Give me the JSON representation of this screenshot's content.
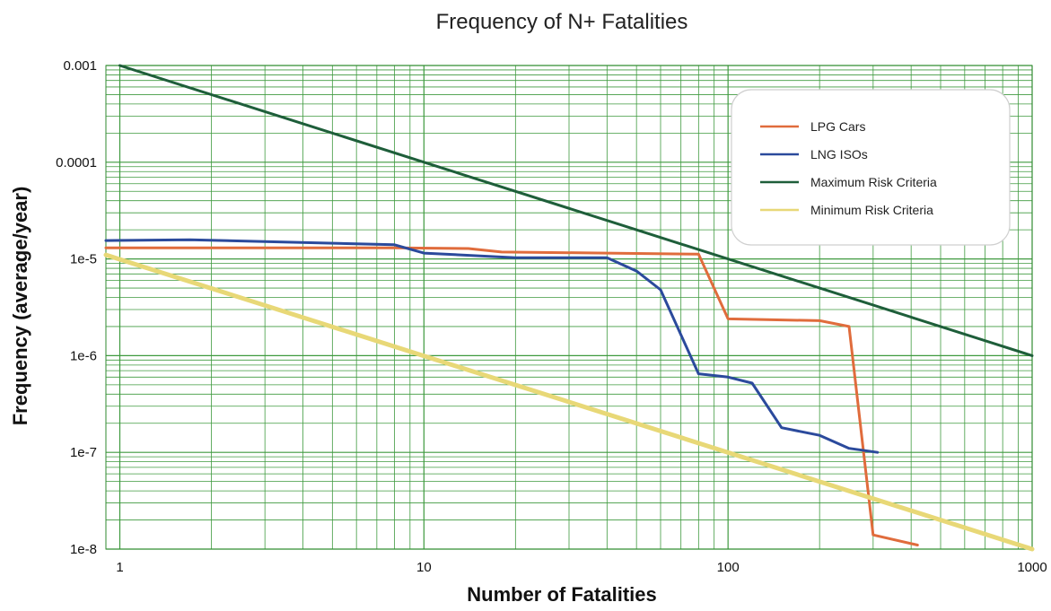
{
  "chart_data": {
    "type": "line",
    "title": "Frequency of N+ Fatalities",
    "xlabel": "Number of Fatalities",
    "ylabel": "Frequency (average/year)",
    "xscale": "log",
    "yscale": "log",
    "xlim": [
      0.9,
      1000
    ],
    "ylim": [
      1e-08,
      0.001
    ],
    "x_ticks": [
      {
        "value": 1,
        "label": "1"
      },
      {
        "value": 10,
        "label": "10"
      },
      {
        "value": 100,
        "label": "100"
      },
      {
        "value": 1000,
        "label": "1000"
      }
    ],
    "y_ticks": [
      {
        "value": 0.001,
        "label": "0.001"
      },
      {
        "value": 0.0001,
        "label": "0.0001"
      },
      {
        "value": 1e-05,
        "label": "1e-5"
      },
      {
        "value": 1e-06,
        "label": "1e-6"
      },
      {
        "value": 1e-07,
        "label": "1e-7"
      },
      {
        "value": 1e-08,
        "label": "1e-8"
      }
    ],
    "grid": true,
    "legend_position": "top-right",
    "series": [
      {
        "name": "LPG Cars",
        "color": "#e06c3c",
        "x": [
          0.9,
          8,
          14,
          18,
          40,
          80,
          100,
          200,
          250,
          300,
          420
        ],
        "y": [
          1.3e-05,
          1.3e-05,
          1.28e-05,
          1.18e-05,
          1.15e-05,
          1.12e-05,
          2.4e-06,
          2.3e-06,
          2e-06,
          1.4e-08,
          1.1e-08
        ]
      },
      {
        "name": "LNG ISOs",
        "color": "#2b4a9c",
        "x": [
          0.9,
          1.7,
          8,
          10,
          20,
          40,
          50,
          60,
          80,
          100,
          120,
          150,
          200,
          250,
          310
        ],
        "y": [
          1.55e-05,
          1.58e-05,
          1.4e-05,
          1.15e-05,
          1.03e-05,
          1.03e-05,
          7.5e-06,
          4.8e-06,
          6.5e-07,
          6e-07,
          5.2e-07,
          1.8e-07,
          1.5e-07,
          1.1e-07,
          1e-07
        ]
      },
      {
        "name": "Maximum Risk Criteria",
        "color": "#1e5e3a",
        "x": [
          1,
          1000
        ],
        "y": [
          0.001,
          1e-06
        ]
      },
      {
        "name": "Minimum Risk Criteria",
        "color": "#e8d877",
        "x": [
          0.9,
          1000
        ],
        "y": [
          1.1e-05,
          1e-08
        ]
      }
    ]
  }
}
